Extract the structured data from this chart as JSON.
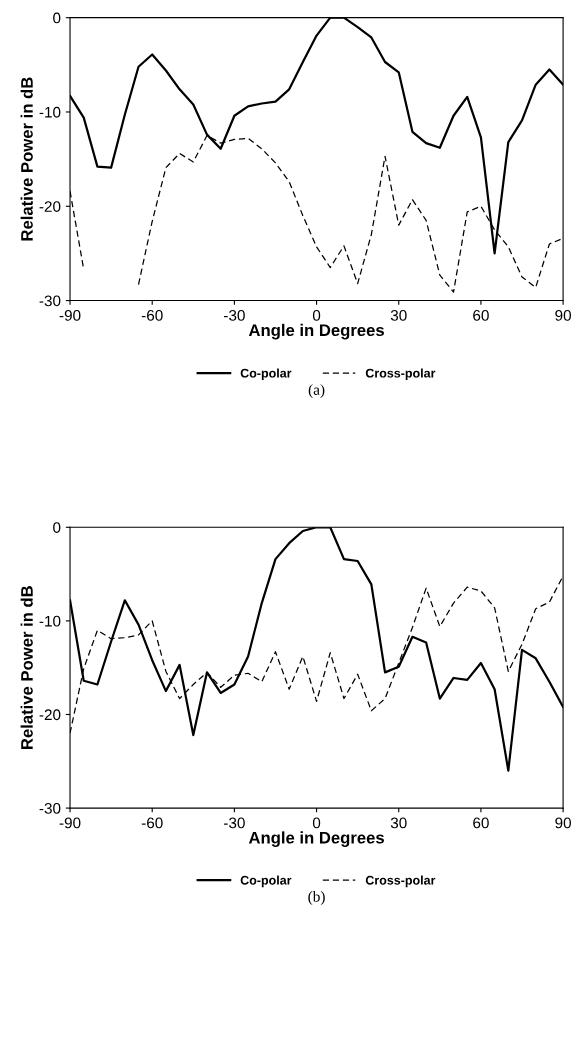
{
  "chart_data": [
    {
      "type": "line",
      "xlabel": "Angle in Degrees",
      "ylabel": "Relative Power in dB",
      "annotations": [
        "(a)"
      ],
      "x": [
        -90,
        -85,
        -80,
        -75,
        -70,
        -65,
        -60,
        -55,
        -50,
        -45,
        -40,
        -35,
        -30,
        -25,
        -20,
        -15,
        -10,
        -5,
        0,
        5,
        10,
        15,
        20,
        25,
        30,
        35,
        40,
        45,
        50,
        55,
        60,
        65,
        70,
        75,
        80,
        85,
        90
      ],
      "series": [
        {
          "name": "Co-polar",
          "color": "#000000",
          "line_style": "solid",
          "values": [
            -8.3,
            -10.6,
            -15.8,
            -15.9,
            -10.3,
            -5.2,
            -3.9,
            -5.6,
            -7.6,
            -9.2,
            -12.4,
            -13.9,
            -10.4,
            -9.4,
            -9.1,
            -8.9,
            -7.6,
            -4.7,
            -1.9,
            0,
            0,
            -1,
            -2.1,
            -4.7,
            -5.8,
            -12.1,
            -13.3,
            -13.8,
            -10.4,
            -8.4,
            -12.7,
            -25,
            -13.2,
            -10.9,
            -7.1,
            -5.5,
            -7.1
          ]
        },
        {
          "name": "Cross-polar",
          "color": "#000000",
          "line_style": "dashed",
          "values": [
            -18.4,
            -26.7,
            null,
            null,
            null,
            -28.3,
            -21.6,
            -15.9,
            -14.4,
            -15.3,
            -12.5,
            -13.3,
            -12.9,
            -12.8,
            -13.9,
            -15.4,
            -17.4,
            -21,
            -24.3,
            -26.5,
            -24.2,
            -28.2,
            -23,
            -14.7,
            -22,
            -19.3,
            -21.5,
            -27.3,
            -29.1,
            -20.6,
            -20,
            -22.5,
            -24.3,
            -27.5,
            -28.6,
            -24,
            -23.4
          ]
        }
      ],
      "xlim": [
        -90,
        90
      ],
      "xticks": [
        -90,
        -60,
        -30,
        0,
        30,
        60,
        90
      ],
      "ylim": [
        -30,
        0
      ],
      "yticks": [
        -30,
        -20,
        -10,
        0
      ],
      "grid": false,
      "legend": "bottom"
    },
    {
      "type": "line",
      "xlabel": "Angle in Degrees",
      "ylabel": "Relative Power in dB",
      "annotations": [
        "(b)"
      ],
      "x": [
        -90,
        -85,
        -80,
        -75,
        -70,
        -65,
        -60,
        -55,
        -50,
        -45,
        -40,
        -35,
        -30,
        -25,
        -20,
        -15,
        -10,
        -5,
        0,
        5,
        10,
        15,
        20,
        25,
        30,
        35,
        40,
        45,
        50,
        55,
        60,
        65,
        70,
        75,
        80,
        85,
        90
      ],
      "series": [
        {
          "name": "Co-polar",
          "color": "#000000",
          "line_style": "solid",
          "values": [
            -7.8,
            -16.4,
            -16.8,
            -12.2,
            -7.8,
            -10.4,
            -14.2,
            -17.5,
            -14.7,
            -22.2,
            -15.5,
            -17.7,
            -16.8,
            -13.8,
            -8.1,
            -3.4,
            -1.7,
            -0.4,
            0,
            0,
            -3.4,
            -3.6,
            -6.1,
            -15.5,
            -14.9,
            -11.7,
            -12.3,
            -18.3,
            -16.1,
            -16.3,
            -14.5,
            -17.3,
            -26,
            -13.1,
            -14,
            -16.5,
            -19.2
          ]
        },
        {
          "name": "Cross-polar",
          "color": "#000000",
          "line_style": "dashed",
          "values": [
            -22,
            -15.1,
            -11,
            -11.9,
            -11.8,
            -11.5,
            -10,
            -15.4,
            -18.3,
            -16.8,
            -15.5,
            -17.1,
            -15.8,
            -15.6,
            -16.5,
            -13.3,
            -17.3,
            -13.8,
            -18.6,
            -13.4,
            -18.3,
            -15.7,
            -19.6,
            -18.3,
            -14.5,
            -10.7,
            -6.5,
            -10.6,
            -8.1,
            -6.4,
            -6.8,
            -8.6,
            -15.4,
            -12.5,
            -8.7,
            -8,
            -5.2
          ]
        }
      ],
      "xlim": [
        -90,
        90
      ],
      "xticks": [
        -90,
        -60,
        -30,
        0,
        30,
        60,
        90
      ],
      "ylim": [
        -30,
        0
      ],
      "yticks": [
        -30,
        -20,
        -10,
        0
      ],
      "grid": false,
      "legend": "bottom"
    }
  ]
}
